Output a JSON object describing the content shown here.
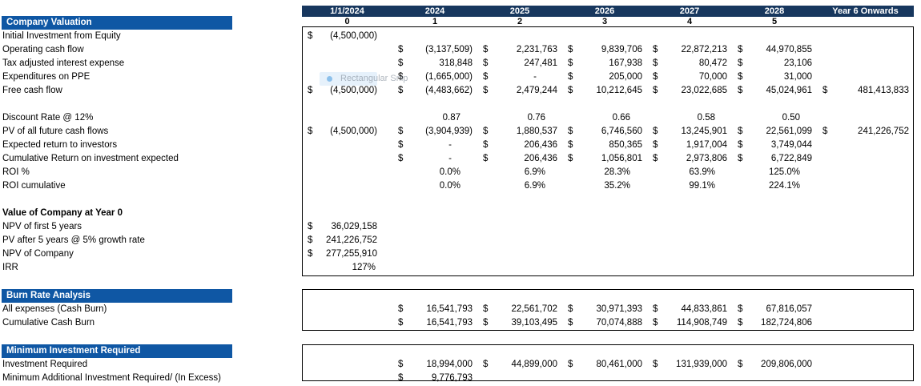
{
  "colors": {
    "header_bar": "#17375E",
    "section_bar": "#0F57A4",
    "box_border": "#000000"
  },
  "columns": {
    "headers": [
      "1/1/2024",
      "2024",
      "2025",
      "2026",
      "2027",
      "2028",
      "Year 6 Onwards"
    ],
    "periods": [
      "0",
      "1",
      "2",
      "3",
      "4",
      "5",
      ""
    ]
  },
  "overlay": {
    "snip_tooltip": "Rectangular Snip"
  },
  "sections": {
    "company_valuation": {
      "title": "Company Valuation",
      "rows": [
        {
          "label": "Initial Investment from Equity",
          "cells": [
            {
              "c": "$",
              "v": "(4,500,000)"
            },
            null,
            null,
            null,
            null,
            null,
            null
          ]
        },
        {
          "label": "Operating cash flow",
          "cells": [
            null,
            {
              "c": "$",
              "v": "(3,137,509)"
            },
            {
              "c": "$",
              "v": "2,231,763"
            },
            {
              "c": "$",
              "v": "9,839,706"
            },
            {
              "c": "$",
              "v": "22,872,213"
            },
            {
              "c": "$",
              "v": "44,970,855"
            },
            null
          ]
        },
        {
          "label": "Tax adjusted interest expense",
          "cells": [
            null,
            {
              "c": "$",
              "v": "318,848"
            },
            {
              "c": "$",
              "v": "247,481"
            },
            {
              "c": "$",
              "v": "167,938"
            },
            {
              "c": "$",
              "v": "80,472"
            },
            {
              "c": "$",
              "v": "23,106"
            },
            null
          ]
        },
        {
          "label": "Expenditures on PPE",
          "cells": [
            null,
            {
              "c": "$",
              "v": "(1,665,000)"
            },
            {
              "c": "$",
              "v": "-"
            },
            {
              "c": "$",
              "v": "205,000"
            },
            {
              "c": "$",
              "v": "70,000"
            },
            {
              "c": "$",
              "v": "31,000"
            },
            null
          ]
        },
        {
          "label": "Free cash flow",
          "cells": [
            {
              "c": "$",
              "v": "(4,500,000)"
            },
            {
              "c": "$",
              "v": "(4,483,662)"
            },
            {
              "c": "$",
              "v": "2,479,244"
            },
            {
              "c": "$",
              "v": "10,212,645"
            },
            {
              "c": "$",
              "v": "23,022,685"
            },
            {
              "c": "$",
              "v": "45,024,961"
            },
            {
              "c": "$",
              "v": "481,413,833"
            }
          ]
        },
        {
          "blank": true
        },
        {
          "label": "Discount Rate @ 12%",
          "cells": [
            null,
            {
              "v": "0.87"
            },
            {
              "v": "0.76"
            },
            {
              "v": "0.66"
            },
            {
              "v": "0.58"
            },
            {
              "v": "0.50"
            },
            null
          ]
        },
        {
          "label": "PV of all future cash flows",
          "cells": [
            {
              "c": "$",
              "v": "(4,500,000)"
            },
            {
              "c": "$",
              "v": "(3,904,939)"
            },
            {
              "c": "$",
              "v": "1,880,537"
            },
            {
              "c": "$",
              "v": "6,746,560"
            },
            {
              "c": "$",
              "v": "13,245,901"
            },
            {
              "c": "$",
              "v": "22,561,099"
            },
            {
              "c": "$",
              "v": "241,226,752"
            }
          ]
        },
        {
          "label": "Expected return to investors",
          "cells": [
            null,
            {
              "c": "$",
              "v": "-"
            },
            {
              "c": "$",
              "v": "206,436"
            },
            {
              "c": "$",
              "v": "850,365"
            },
            {
              "c": "$",
              "v": "1,917,004"
            },
            {
              "c": "$",
              "v": "3,749,044"
            },
            null
          ]
        },
        {
          "label": "Cumulative Return on investment expected",
          "cells": [
            null,
            {
              "c": "$",
              "v": "-"
            },
            {
              "c": "$",
              "v": "206,436"
            },
            {
              "c": "$",
              "v": "1,056,801"
            },
            {
              "c": "$",
              "v": "2,973,806"
            },
            {
              "c": "$",
              "v": "6,722,849"
            },
            null
          ]
        },
        {
          "label": "ROI %",
          "cells": [
            null,
            {
              "v": "0.0%"
            },
            {
              "v": "6.9%"
            },
            {
              "v": "28.3%"
            },
            {
              "v": "63.9%"
            },
            {
              "v": "125.0%"
            },
            null
          ]
        },
        {
          "label": "ROI cumulative",
          "cells": [
            null,
            {
              "v": "0.0%"
            },
            {
              "v": "6.9%"
            },
            {
              "v": "35.2%"
            },
            {
              "v": "99.1%"
            },
            {
              "v": "224.1%"
            },
            null
          ]
        },
        {
          "blank": true
        },
        {
          "subheading": "Value of Company at Year 0"
        },
        {
          "label": "NPV of first 5 years",
          "cells": [
            {
              "c": "$",
              "v": "36,029,158"
            },
            null,
            null,
            null,
            null,
            null,
            null
          ]
        },
        {
          "label": "PV after 5 years @ 5% growth rate",
          "cells": [
            {
              "c": "$",
              "v": "241,226,752"
            },
            null,
            null,
            null,
            null,
            null,
            null
          ]
        },
        {
          "label": "NPV of Company",
          "cells": [
            {
              "c": "$",
              "v": "277,255,910"
            },
            null,
            null,
            null,
            null,
            null,
            null
          ]
        },
        {
          "label": "IRR",
          "cells": [
            {
              "v": "127%"
            },
            null,
            null,
            null,
            null,
            null,
            null
          ]
        }
      ]
    },
    "burn_rate": {
      "title": "Burn Rate Analysis",
      "rows": [
        {
          "label": "All expenses (Cash Burn)",
          "cells": [
            null,
            {
              "c": "$",
              "v": "16,541,793"
            },
            {
              "c": "$",
              "v": "22,561,702"
            },
            {
              "c": "$",
              "v": "30,971,393"
            },
            {
              "c": "$",
              "v": "44,833,861"
            },
            {
              "c": "$",
              "v": "67,816,057"
            },
            null
          ]
        },
        {
          "label": "Cumulative Cash Burn",
          "cells": [
            null,
            {
              "c": "$",
              "v": "16,541,793"
            },
            {
              "c": "$",
              "v": "39,103,495"
            },
            {
              "c": "$",
              "v": "70,074,888"
            },
            {
              "c": "$",
              "v": "114,908,749"
            },
            {
              "c": "$",
              "v": "182,724,806"
            },
            null
          ]
        }
      ]
    },
    "minimum_investment": {
      "title": "Minimum Investment Required",
      "rows": [
        {
          "label": "Investment Required",
          "cells": [
            null,
            {
              "c": "$",
              "v": "18,994,000"
            },
            {
              "c": "$",
              "v": "44,899,000"
            },
            {
              "c": "$",
              "v": "80,461,000"
            },
            {
              "c": "$",
              "v": "131,939,000"
            },
            {
              "c": "$",
              "v": "209,806,000"
            },
            null
          ]
        },
        {
          "label": "Minimum Additional Investment Required/ (In Excess)",
          "cells": [
            null,
            {
              "c": "$",
              "v": "9,776,793"
            },
            null,
            null,
            null,
            null,
            null
          ]
        }
      ]
    }
  }
}
